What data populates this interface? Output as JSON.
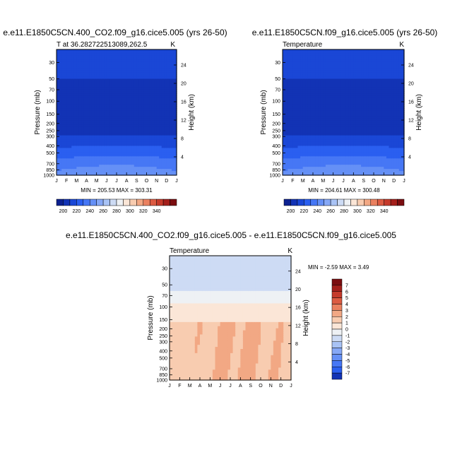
{
  "panels": [
    {
      "id": "p1",
      "header": "e.e11.E1850C5CN.400_CO2.f09_g16.cice5.005 (yrs 26-50)",
      "left_label": "T at 36.282722513089,262.5",
      "right_label": "K",
      "minmax": "MIN = 205.53 MAX = 303.31"
    },
    {
      "id": "p2",
      "header": "e.e11.E1850C5CN.f09_g16.cice5.005 (yrs 26-50)",
      "left_label": "Temperature",
      "right_label": "K",
      "minmax": "MIN = 204.61 MAX = 300.48"
    },
    {
      "id": "p3",
      "header": "e.e11.E1850C5CN.400_CO2.f09_g16.cice5.005 - e.e11.E1850C5CN.f09_g16.cice5.005",
      "left_label": "Temperature",
      "right_label": "K",
      "minmax": "MIN =  -2.59 MAX =   3.49"
    }
  ],
  "chart_data": [
    {
      "type": "heatmap",
      "title": "e.e11.E1850C5CN.400_CO2.f09_g16.cice5.005 (yrs 26-50)",
      "xlabel": "",
      "ylabel": "Pressure (mb)",
      "ylabel_right": "Height (km)",
      "x_ticks": [
        "J",
        "F",
        "M",
        "A",
        "M",
        "J",
        "J",
        "A",
        "S",
        "O",
        "N",
        "D",
        "J"
      ],
      "y_ticks": [
        "30",
        "50",
        "70",
        "100",
        "150",
        "200",
        "250",
        "300",
        "400",
        "500",
        "700",
        "850",
        "1000"
      ],
      "y_right_ticks": [
        "24",
        "20",
        "16",
        "12",
        "8",
        "4"
      ],
      "ylim": [
        1000,
        20
      ],
      "yscale": "log",
      "min": 205.53,
      "max": 303.31,
      "colorbar_labels": [
        "200",
        "220",
        "240",
        "260",
        "280",
        "300",
        "320",
        "340"
      ]
    },
    {
      "type": "heatmap",
      "title": "e.e11.E1850C5CN.f09_g16.cice5.005 (yrs 26-50)",
      "xlabel": "",
      "ylabel": "Pressure (mb)",
      "ylabel_right": "Height (km)",
      "x_ticks": [
        "J",
        "F",
        "M",
        "A",
        "M",
        "J",
        "J",
        "A",
        "S",
        "O",
        "N",
        "D",
        "J"
      ],
      "y_ticks": [
        "30",
        "50",
        "70",
        "100",
        "150",
        "200",
        "250",
        "300",
        "400",
        "500",
        "700",
        "850",
        "1000"
      ],
      "y_right_ticks": [
        "24",
        "20",
        "16",
        "12",
        "8",
        "4"
      ],
      "ylim": [
        1000,
        20
      ],
      "yscale": "log",
      "min": 204.61,
      "max": 300.48,
      "colorbar_labels": [
        "200",
        "220",
        "240",
        "260",
        "280",
        "300",
        "320",
        "340"
      ]
    },
    {
      "type": "heatmap",
      "title": "e.e11.E1850C5CN.400_CO2.f09_g16.cice5.005 - e.e11.E1850C5CN.f09_g16.cice5.005",
      "xlabel": "",
      "ylabel": "Pressure (mb)",
      "ylabel_right": "Height (km)",
      "x_ticks": [
        "J",
        "F",
        "M",
        "A",
        "M",
        "J",
        "J",
        "A",
        "S",
        "O",
        "N",
        "D",
        "J"
      ],
      "y_ticks": [
        "30",
        "50",
        "70",
        "100",
        "150",
        "200",
        "250",
        "300",
        "400",
        "500",
        "700",
        "850",
        "1000"
      ],
      "y_right_ticks": [
        "24",
        "20",
        "16",
        "12",
        "8",
        "4"
      ],
      "ylim": [
        1000,
        20
      ],
      "yscale": "log",
      "min": -2.59,
      "max": 3.49,
      "colorbar_labels": [
        "7",
        "6",
        "5",
        "4",
        "3",
        "2",
        "1",
        "0",
        "-1",
        "-2",
        "-3",
        "-4",
        "-5",
        "-6",
        "-7"
      ]
    }
  ],
  "colors": {
    "abs_bands": [
      "#0c2190",
      "#1233b5",
      "#1a47d6",
      "#2a5ff0",
      "#4677f5",
      "#6590f6",
      "#86a8f6",
      "#a9c3f5",
      "#cddbf4",
      "#eef1f4",
      "#fbe6d7",
      "#f8ccb0",
      "#f2a884",
      "#ea8160",
      "#dc5b42",
      "#c53a2b",
      "#a41f1b",
      "#7b0d10"
    ],
    "diff_bands": [
      "#7b0d10",
      "#a41f1b",
      "#c53a2b",
      "#dc5b42",
      "#ea8160",
      "#f2a884",
      "#f8ccb0",
      "#fbe6d7",
      "#eef1f4",
      "#cddbf4",
      "#a9c3f5",
      "#86a8f6",
      "#6590f6",
      "#4677f5",
      "#2a5ff0",
      "#1233b5"
    ]
  }
}
